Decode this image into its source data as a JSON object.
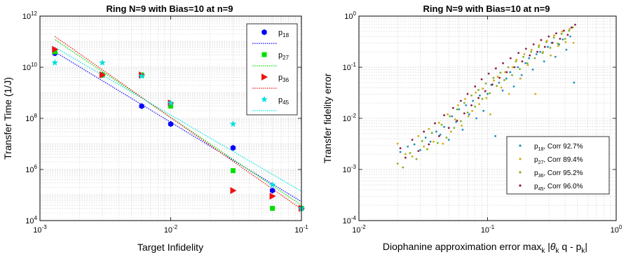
{
  "chart_data": [
    {
      "type": "scatter",
      "title": "Ring N=9 with Bias=10 at n=9",
      "xlabel": "Target Infidelity",
      "ylabel": "Transfer Time (1/J)",
      "xscale": "log",
      "yscale": "log",
      "xlim": [
        0.001,
        0.1
      ],
      "ylim": [
        10000,
        1000000000000
      ],
      "x_ticks": [
        {
          "value": 0.001,
          "base": "10",
          "exp": "-3"
        },
        {
          "value": 0.01,
          "base": "10",
          "exp": "-2"
        },
        {
          "value": 0.1,
          "base": "10",
          "exp": "-1"
        }
      ],
      "y_ticks": [
        {
          "value": 10000,
          "base": "10",
          "exp": "4"
        },
        {
          "value": 1000000,
          "base": "10",
          "exp": "6"
        },
        {
          "value": 100000000,
          "base": "10",
          "exp": "8"
        },
        {
          "value": 10000000000,
          "base": "10",
          "exp": "10"
        },
        {
          "value": 1000000000000,
          "base": "10",
          "exp": "12"
        }
      ],
      "grid": true,
      "legend_position": "top-right",
      "series": [
        {
          "name": "p",
          "sub": "18",
          "color": "#0000ff",
          "marker": "hexagon",
          "x": [
            0.0013,
            0.003,
            0.006,
            0.01,
            0.03,
            0.06,
            0.1
          ],
          "y": [
            35000000000,
            5000000000,
            300000000,
            60000000,
            7000000,
            150000,
            30000
          ],
          "fit": {
            "x": [
              0.0013,
              0.1
            ],
            "y": [
              40000000000,
              55000
            ]
          }
        },
        {
          "name": "p",
          "sub": "27",
          "color": "#00e000",
          "marker": "square",
          "x": [
            0.0013,
            0.003,
            0.006,
            0.01,
            0.03,
            0.06,
            0.1
          ],
          "y": [
            40000000000,
            5000000000,
            5000000000,
            300000000,
            900000,
            30000,
            30000
          ],
          "fit": {
            "x": [
              0.0013,
              0.1
            ],
            "y": [
              120000000000,
              40000
            ]
          }
        },
        {
          "name": "p",
          "sub": "36",
          "color": "#ee1111",
          "marker": "triangle-right",
          "x": [
            0.0013,
            0.003,
            0.006,
            0.01,
            0.03,
            0.06,
            0.1
          ],
          "y": [
            50000000000,
            5000000000,
            5000000000,
            400000000,
            150000,
            90000,
            30000
          ],
          "fit": {
            "x": [
              0.0013,
              0.1
            ],
            "y": [
              160000000000,
              28000
            ]
          }
        },
        {
          "name": "p",
          "sub": "45",
          "color": "#00e0e0",
          "marker": "star",
          "x": [
            0.0013,
            0.003,
            0.006,
            0.01,
            0.03,
            0.06,
            0.1
          ],
          "y": [
            15000000000,
            15000000000,
            4500000000,
            400000000,
            60000000,
            250000,
            30000
          ],
          "fit": {
            "x": [
              0.0013,
              0.1
            ],
            "y": [
              60000000000,
              140000
            ]
          }
        }
      ]
    },
    {
      "type": "scatter",
      "title": "Ring N=9 with Bias=10 at n=9",
      "xlabel_text": "Diophanine approximation error max",
      "xlabel_k1": "k",
      "xlabel_theta": "θ",
      "xlabel_k2": "k",
      "xlabel_q": " q - p",
      "xlabel_k3": "k",
      "ylabel": "Transfer fidelity error",
      "xscale": "log",
      "yscale": "log",
      "xlim": [
        0.01,
        1
      ],
      "ylim": [
        0.0001,
        1
      ],
      "x_ticks": [
        {
          "value": 0.01,
          "base": "10",
          "exp": "-2"
        },
        {
          "value": 0.1,
          "base": "10",
          "exp": "-1"
        },
        {
          "value": 1,
          "base": "10",
          "exp": "0"
        }
      ],
      "y_ticks": [
        {
          "value": 0.0001,
          "base": "10",
          "exp": "-4"
        },
        {
          "value": 0.001,
          "base": "10",
          "exp": "-3"
        },
        {
          "value": 0.01,
          "base": "10",
          "exp": "-2"
        },
        {
          "value": 0.1,
          "base": "10",
          "exp": "-1"
        },
        {
          "value": 1,
          "base": "10",
          "exp": "0"
        }
      ],
      "grid": true,
      "legend_position": "bottom-right",
      "series": [
        {
          "name": "p",
          "sub": "18",
          "corr": ", Corr 92.7%",
          "color": "#1f8fbf",
          "x": [
            0.021,
            0.024,
            0.027,
            0.03,
            0.033,
            0.036,
            0.04,
            0.043,
            0.046,
            0.05,
            0.053,
            0.057,
            0.06,
            0.064,
            0.068,
            0.072,
            0.077,
            0.082,
            0.087,
            0.093,
            0.1,
            0.107,
            0.115,
            0.123,
            0.131,
            0.14,
            0.15,
            0.16,
            0.172,
            0.184,
            0.197,
            0.21,
            0.225,
            0.24,
            0.257,
            0.275,
            0.294,
            0.315,
            0.337,
            0.36,
            0.385,
            0.41,
            0.44,
            0.47
          ],
          "y": [
            0.0022,
            0.0028,
            0.0031,
            0.0024,
            0.0042,
            0.0035,
            0.0055,
            0.0048,
            0.0068,
            0.0038,
            0.011,
            0.0085,
            0.015,
            0.006,
            0.018,
            0.012,
            0.022,
            0.01,
            0.028,
            0.014,
            0.03,
            0.045,
            0.0045,
            0.05,
            0.035,
            0.06,
            0.08,
            0.042,
            0.1,
            0.07,
            0.12,
            0.15,
            0.09,
            0.18,
            0.2,
            0.13,
            0.25,
            0.3,
            0.16,
            0.28,
            0.35,
            0.22,
            0.4,
            0.05
          ]
        },
        {
          "name": "p",
          "sub": "27",
          "corr": ", Corr 89.4%",
          "color": "#d4aa10",
          "x": [
            0.02,
            0.023,
            0.026,
            0.029,
            0.032,
            0.035,
            0.038,
            0.042,
            0.045,
            0.049,
            0.052,
            0.056,
            0.059,
            0.063,
            0.067,
            0.071,
            0.076,
            0.081,
            0.086,
            0.092,
            0.098,
            0.105,
            0.112,
            0.12,
            0.128,
            0.137,
            0.147,
            0.157,
            0.168,
            0.18,
            0.193,
            0.206,
            0.22,
            0.236,
            0.252,
            0.27,
            0.289,
            0.31,
            0.33,
            0.355,
            0.38,
            0.405,
            0.435,
            0.465
          ],
          "y": [
            0.0032,
            0.002,
            0.0018,
            0.0045,
            0.0028,
            0.0062,
            0.0035,
            0.0082,
            0.0032,
            0.012,
            0.0055,
            0.0095,
            0.018,
            0.0072,
            0.024,
            0.011,
            0.014,
            0.032,
            0.019,
            0.038,
            0.025,
            0.012,
            0.055,
            0.065,
            0.04,
            0.08,
            0.03,
            0.1,
            0.14,
            0.06,
            0.18,
            0.11,
            0.22,
            0.03,
            0.27,
            0.2,
            0.33,
            0.17,
            0.42,
            0.26,
            0.5,
            0.31,
            0.56,
            0.3
          ]
        },
        {
          "name": "p",
          "sub": "36",
          "corr": ", Corr 95.2%",
          "color": "#80b020",
          "x": [
            0.02,
            0.022,
            0.025,
            0.028,
            0.031,
            0.034,
            0.037,
            0.041,
            0.044,
            0.048,
            0.051,
            0.055,
            0.058,
            0.062,
            0.066,
            0.07,
            0.075,
            0.08,
            0.085,
            0.091,
            0.097,
            0.104,
            0.111,
            0.118,
            0.126,
            0.135,
            0.145,
            0.155,
            0.166,
            0.178,
            0.19,
            0.204,
            0.218,
            0.233,
            0.25,
            0.268,
            0.287,
            0.307,
            0.328,
            0.351,
            0.376,
            0.402,
            0.43,
            0.46
          ],
          "y": [
            0.0013,
            0.0011,
            0.0021,
            0.0016,
            0.0036,
            0.0025,
            0.0052,
            0.0033,
            0.0075,
            0.0042,
            0.011,
            0.0065,
            0.015,
            0.0088,
            0.02,
            0.013,
            0.028,
            0.017,
            0.036,
            0.024,
            0.048,
            0.031,
            0.062,
            0.043,
            0.078,
            0.056,
            0.1,
            0.07,
            0.13,
            0.092,
            0.16,
            0.12,
            0.2,
            0.15,
            0.25,
            0.19,
            0.31,
            0.24,
            0.38,
            0.29,
            0.45,
            0.36,
            0.52,
            0.6
          ]
        },
        {
          "name": "p",
          "sub": "45",
          "corr": ", Corr 96.0%",
          "color": "#8b1a4a",
          "x": [
            0.021,
            0.023,
            0.026,
            0.029,
            0.032,
            0.035,
            0.039,
            0.042,
            0.046,
            0.05,
            0.054,
            0.058,
            0.062,
            0.066,
            0.07,
            0.075,
            0.08,
            0.085,
            0.09,
            0.096,
            0.102,
            0.109,
            0.116,
            0.124,
            0.132,
            0.141,
            0.151,
            0.162,
            0.174,
            0.186,
            0.199,
            0.213,
            0.228,
            0.244,
            0.261,
            0.279,
            0.299,
            0.32,
            0.342,
            0.366,
            0.392,
            0.42,
            0.45,
            0.48
          ],
          "y": [
            0.0026,
            0.0017,
            0.0038,
            0.0023,
            0.0055,
            0.0031,
            0.008,
            0.0045,
            0.0115,
            0.0065,
            0.016,
            0.009,
            0.022,
            0.0125,
            0.03,
            0.018,
            0.042,
            0.025,
            0.058,
            0.034,
            0.075,
            0.046,
            0.095,
            0.062,
            0.12,
            0.08,
            0.15,
            0.1,
            0.19,
            0.13,
            0.23,
            0.17,
            0.28,
            0.2,
            0.34,
            0.25,
            0.4,
            0.3,
            0.46,
            0.36,
            0.52,
            0.43,
            0.6,
            0.68
          ]
        }
      ]
    }
  ]
}
